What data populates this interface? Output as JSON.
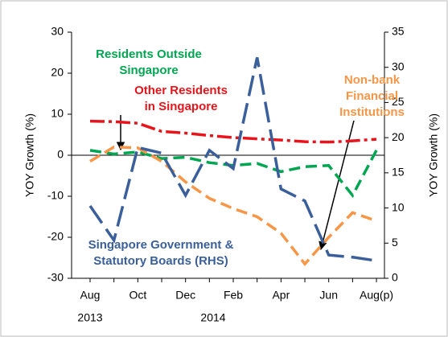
{
  "chart_data": {
    "type": "line",
    "categories": [
      "Aug",
      null,
      "Oct",
      null,
      "Dec",
      null,
      "Feb",
      null,
      "Apr",
      null,
      "Jun",
      null,
      "Aug(p)"
    ],
    "years": [
      "2013",
      "2014"
    ],
    "ylabel": "YOY Growth (%)",
    "y2label": "YOY Growth (%)",
    "ylim": [
      -30,
      30
    ],
    "yticks": [
      -30,
      -20,
      -10,
      0,
      10,
      20,
      30
    ],
    "y2lim": [
      0,
      35
    ],
    "y2ticks": [
      0,
      5,
      10,
      15,
      20,
      25,
      30,
      35
    ],
    "series": [
      {
        "name": "Other Residents in Singapore",
        "color": "#e8141b",
        "line_style": "dashdot",
        "values": [
          8.3,
          8.2,
          7.8,
          5.8,
          5.4,
          4.8,
          4.3,
          4.0,
          3.7,
          3.3,
          3.2,
          3.5,
          3.9
        ]
      },
      {
        "name": "Residents Outside Singapore",
        "color": "#00a651",
        "line_style": "dash",
        "values": [
          1.2,
          0.3,
          0.8,
          -0.8,
          -0.5,
          -1.8,
          -2.5,
          -2.0,
          -4.0,
          -2.8,
          -2.5,
          -9.8,
          1.2
        ]
      },
      {
        "name": "Non-bank Financial Institutions",
        "color": "#f79646",
        "line_style": "dash",
        "values": [
          -1.5,
          2.0,
          1.8,
          -1.5,
          -6.5,
          -10.5,
          -13,
          -15,
          -19,
          -26.5,
          -20,
          -14,
          -16
        ]
      },
      {
        "name": "Singapore Government & Statutory Boards (RHS)",
        "color": "#3a5f9a",
        "line_style": "longdash",
        "axis": "y2",
        "values": [
          10.3,
          5.4,
          18.6,
          17.8,
          11.8,
          18.2,
          15.6,
          31.4,
          12.7,
          11.0,
          3.3,
          3.0,
          2.5
        ]
      }
    ]
  }
}
